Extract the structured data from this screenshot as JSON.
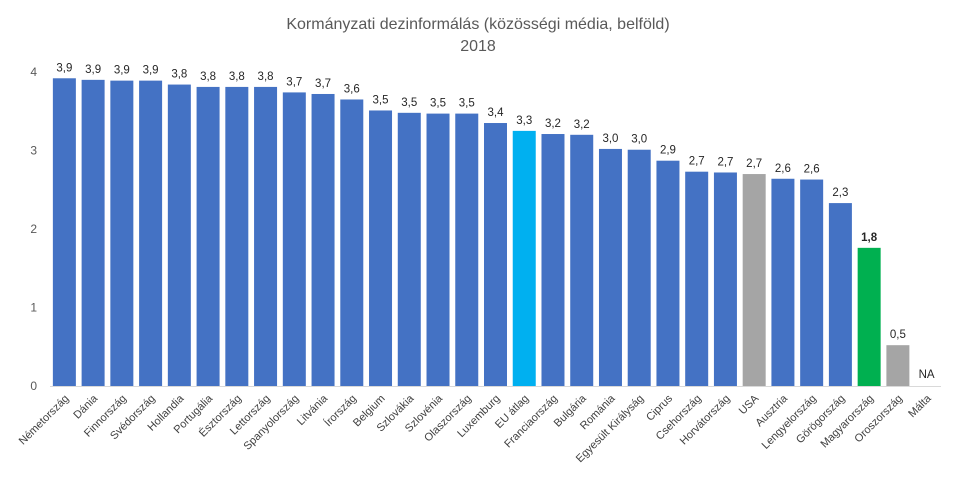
{
  "chart_data": {
    "type": "bar",
    "title": "Kormányzati dezinformálás (közösségi média, belföld)",
    "subtitle": "2018",
    "xlabel": "",
    "ylabel": "",
    "ylim": [
      0,
      4
    ],
    "yticks": [
      "0",
      "1",
      "2",
      "3",
      "4"
    ],
    "grid": false,
    "categories": [
      "Németország",
      "Dánia",
      "Finnország",
      "Svédország",
      "Hollandia",
      "Portugália",
      "Észtország",
      "Lettország",
      "Spanyolország",
      "Litvánia",
      "Írország",
      "Belgium",
      "Szlovákia",
      "Szlovénia",
      "Olaszország",
      "Luxemburg",
      "EU átlag",
      "Franciaország",
      "Bulgária",
      "Románia",
      "Egyesült Királyság",
      "Ciprus",
      "Csehország",
      "Horvátország",
      "USA",
      "Ausztria",
      "Lengyelország",
      "Görögország",
      "Magyarország",
      "Oroszország",
      "Málta"
    ],
    "values": [
      3.92,
      3.9,
      3.89,
      3.89,
      3.84,
      3.81,
      3.81,
      3.81,
      3.74,
      3.72,
      3.65,
      3.51,
      3.48,
      3.47,
      3.47,
      3.35,
      3.25,
      3.21,
      3.2,
      3.02,
      3.01,
      2.87,
      2.73,
      2.72,
      2.7,
      2.64,
      2.63,
      2.33,
      1.76,
      0.52,
      null
    ],
    "value_labels": [
      "3,9",
      "3,9",
      "3,9",
      "3,9",
      "3,8",
      "3,8",
      "3,8",
      "3,8",
      "3,7",
      "3,7",
      "3,6",
      "3,5",
      "3,5",
      "3,5",
      "3,5",
      "3,4",
      "3,3",
      "3,2",
      "3,2",
      "3,0",
      "3,0",
      "2,9",
      "2,7",
      "2,7",
      "2,7",
      "2,6",
      "2,6",
      "2,3",
      "1,8",
      "0,5",
      "NA"
    ],
    "bar_colors": [
      "#4472c4",
      "#4472c4",
      "#4472c4",
      "#4472c4",
      "#4472c4",
      "#4472c4",
      "#4472c4",
      "#4472c4",
      "#4472c4",
      "#4472c4",
      "#4472c4",
      "#4472c4",
      "#4472c4",
      "#4472c4",
      "#4472c4",
      "#4472c4",
      "#00b0f0",
      "#4472c4",
      "#4472c4",
      "#4472c4",
      "#4472c4",
      "#4472c4",
      "#4472c4",
      "#4472c4",
      "#a5a5a5",
      "#4472c4",
      "#4472c4",
      "#4472c4",
      "#00b050",
      "#a5a5a5",
      "#4472c4"
    ],
    "bold_labels": [
      "1,8"
    ]
  }
}
